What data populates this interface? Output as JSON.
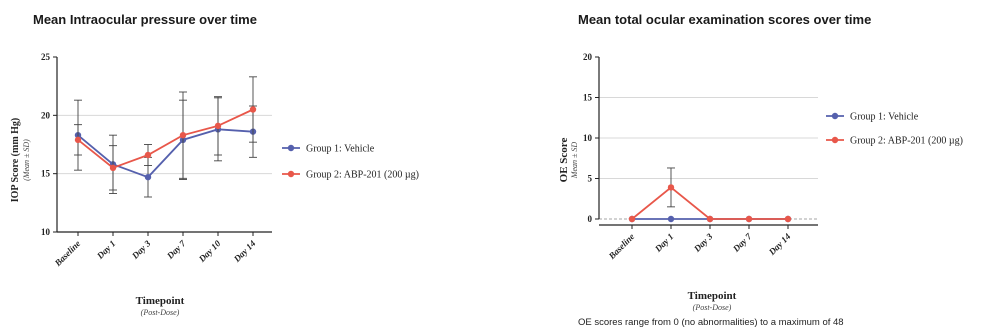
{
  "colors": {
    "vehicle": "#5560ad",
    "abp": "#e8574a",
    "axis": "#222222",
    "grid": "#d8d8d8"
  },
  "footnote": "OE scores range from 0 (no abnormalities) to a maximum of 48",
  "chart_data": [
    {
      "type": "line",
      "title": "Mean Intraocular pressure over time",
      "ylabel": "IOP  Score (mm Hg)",
      "ylabel_sub": "(Mean ± SD)",
      "xlabel": "Timepoint",
      "xlabel_sub": "(Post-Dose)",
      "categories": [
        "Baseline",
        "Day 1",
        "Day 3",
        "Day 7",
        "Day 10",
        "Day 14"
      ],
      "ylim": [
        10,
        25
      ],
      "yticks": [
        "10",
        "15",
        "20",
        "25"
      ],
      "gridlines": [
        15,
        20
      ],
      "legend": "right",
      "series": [
        {
          "name": "Group 1: Vehicle",
          "color_key": "vehicle",
          "values": [
            18.3,
            15.8,
            14.7,
            17.9,
            18.8,
            18.6
          ],
          "sd": [
            3.0,
            2.5,
            1.7,
            3.4,
            2.7,
            2.2
          ]
        },
        {
          "name": "Group 2: ABP-201 (200 µg)",
          "color_key": "abp",
          "values": [
            17.9,
            15.5,
            16.6,
            18.3,
            19.1,
            20.5
          ],
          "sd": [
            1.3,
            1.9,
            0.9,
            3.7,
            2.5,
            2.8
          ]
        }
      ]
    },
    {
      "type": "line",
      "title": "Mean total ocular examination scores over time",
      "ylabel": "OE Score",
      "ylabel_sub": "Mean ± SD",
      "xlabel": "Timepoint",
      "xlabel_sub": "(Post-Dose)",
      "categories": [
        "Baseline",
        "Day 1",
        "Day 3",
        "Day 7",
        "Day 14"
      ],
      "ylim": [
        0,
        20
      ],
      "yticks": [
        "0",
        "5",
        "10",
        "15",
        "20"
      ],
      "gridlines": [
        5,
        10,
        15
      ],
      "legend": "right",
      "series": [
        {
          "name": "Group 1: Vehicle",
          "color_key": "vehicle",
          "values": [
            0,
            0,
            0,
            0,
            0
          ],
          "sd": [
            0,
            0,
            0,
            0,
            0
          ]
        },
        {
          "name": "Group 2: ABP-201 (200 µg)",
          "color_key": "abp",
          "values": [
            0,
            3.9,
            0,
            0,
            0
          ],
          "sd": [
            0,
            2.4,
            0,
            0,
            0
          ]
        }
      ]
    }
  ]
}
